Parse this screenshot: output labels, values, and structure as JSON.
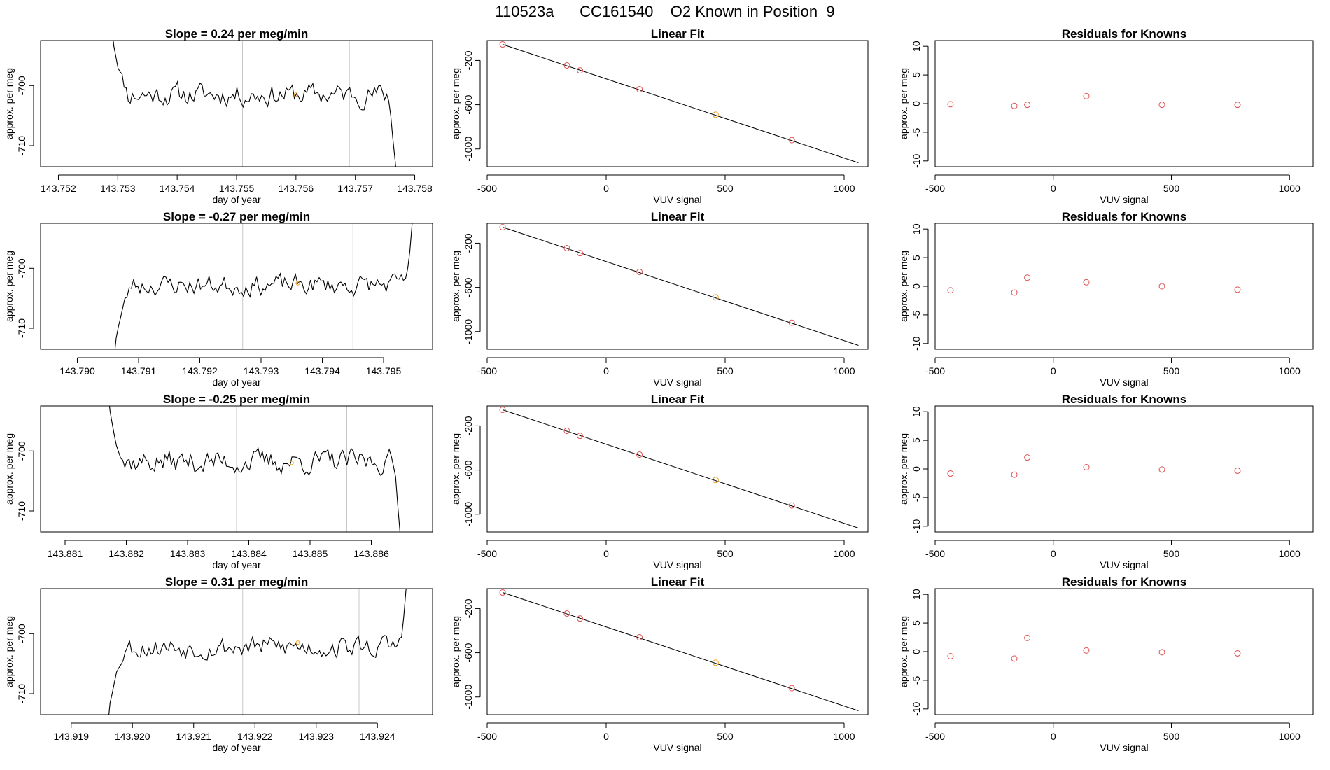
{
  "page_title": "110523a      CC161540    O2 Known in Position  9",
  "colors": {
    "line": "#000000",
    "known_point": "#e05050",
    "current_point": "#f0a020",
    "vertical_marker": "#c8c8c8",
    "frame": "#000000"
  },
  "row_count": 4,
  "chart_data": [
    {
      "type": "line",
      "row": 0,
      "col": 0,
      "title": "Slope =  0.24  per meg/min",
      "xlabel": "day of year",
      "ylabel": "approx. per meg",
      "xlim": [
        143.7517,
        143.7583
      ],
      "ylim": [
        -713.5,
        -692.5
      ],
      "xticks": [
        "143.752",
        "143.753",
        "143.754",
        "143.755",
        "143.756",
        "143.757",
        "143.758"
      ],
      "yticks": [
        -710,
        -700
      ],
      "vlines": [
        143.7551,
        143.7569
      ],
      "trace": {
        "x_start": 143.7529,
        "x_end": 143.7577,
        "n": 140,
        "level": -701.5,
        "amp": 1.4,
        "seed": 11,
        "left_edge": -690,
        "right_edge": -715
      },
      "highlight": {
        "x": 143.756,
        "y": -701.5
      }
    },
    {
      "type": "bar_fit",
      "row": 0,
      "col": 1,
      "title": "Linear Fit",
      "xlabel": "VUV signal",
      "ylabel": "approx. per meg",
      "xlim": [
        -500,
        1100
      ],
      "ylim": [
        -1160,
        -20
      ],
      "xticks": [
        -500,
        0,
        500,
        1000
      ],
      "yticks": [
        -200,
        -600,
        -1000
      ],
      "points": [
        [
          -435,
          -55
        ],
        [
          -165,
          -245
        ],
        [
          -110,
          -290
        ],
        [
          140,
          -460
        ],
        [
          460,
          -690
        ],
        [
          780,
          -920
        ]
      ],
      "current_index": 4,
      "fit_line": [
        [
          -435,
          -55
        ],
        [
          1060,
          -1125
        ]
      ]
    },
    {
      "type": "scatter",
      "row": 0,
      "col": 2,
      "title": "Residuals for Knowns",
      "xlabel": "VUV signal",
      "ylabel": "approx. per meg",
      "xlim": [
        -500,
        1100
      ],
      "ylim": [
        -11,
        11
      ],
      "xticks": [
        -500,
        0,
        500,
        1000
      ],
      "yticks": [
        10,
        5,
        0,
        -5,
        -10
      ],
      "points": [
        [
          -435,
          -0.1
        ],
        [
          -165,
          -0.4
        ],
        [
          -110,
          -0.2
        ],
        [
          140,
          1.3
        ],
        [
          460,
          -0.2
        ],
        [
          780,
          -0.2
        ]
      ]
    },
    {
      "type": "line",
      "row": 1,
      "col": 0,
      "title": "Slope =  -0.27  per meg/min",
      "xlabel": "day of year",
      "ylabel": "approx. per meg",
      "xlim": [
        143.7894,
        143.7958
      ],
      "ylim": [
        -713.5,
        -692.5
      ],
      "xticks": [
        "143.790",
        "143.791",
        "143.792",
        "143.793",
        "143.794",
        "143.795"
      ],
      "yticks": [
        -710,
        -700
      ],
      "vlines": [
        143.7927,
        143.7945
      ],
      "trace": {
        "x_start": 143.7906,
        "x_end": 143.7955,
        "n": 140,
        "level": -702.8,
        "amp": 1.3,
        "seed": 23,
        "left_edge": -715,
        "right_edge": -690
      },
      "highlight": {
        "x": 143.7936,
        "y": -702.5
      }
    },
    {
      "type": "bar_fit",
      "row": 1,
      "col": 1,
      "title": "Linear Fit",
      "xlabel": "VUV signal",
      "ylabel": "approx. per meg",
      "xlim": [
        -500,
        1100
      ],
      "ylim": [
        -1160,
        -20
      ],
      "xticks": [
        -500,
        0,
        500,
        1000
      ],
      "yticks": [
        -200,
        -600,
        -1000
      ],
      "points": [
        [
          -435,
          -55
        ],
        [
          -165,
          -245
        ],
        [
          -110,
          -290
        ],
        [
          140,
          -460
        ],
        [
          460,
          -690
        ],
        [
          780,
          -920
        ]
      ],
      "current_index": 4,
      "fit_line": [
        [
          -435,
          -55
        ],
        [
          1060,
          -1125
        ]
      ]
    },
    {
      "type": "scatter",
      "row": 1,
      "col": 2,
      "title": "Residuals for Knowns",
      "xlabel": "VUV signal",
      "ylabel": "approx. per meg",
      "xlim": [
        -500,
        1100
      ],
      "ylim": [
        -11,
        11
      ],
      "xticks": [
        -500,
        0,
        500,
        1000
      ],
      "yticks": [
        10,
        5,
        0,
        -5,
        -10
      ],
      "points": [
        [
          -435,
          -0.7
        ],
        [
          -165,
          -1.1
        ],
        [
          -110,
          1.5
        ],
        [
          140,
          0.7
        ],
        [
          460,
          0.0
        ],
        [
          780,
          -0.6
        ]
      ]
    },
    {
      "type": "line",
      "row": 2,
      "col": 0,
      "title": "Slope =  -0.25  per meg/min",
      "xlabel": "day of year",
      "ylabel": "approx. per meg",
      "xlim": [
        143.8806,
        143.887
      ],
      "ylim": [
        -713.5,
        -692.5
      ],
      "xticks": [
        "143.881",
        "143.882",
        "143.883",
        "143.884",
        "143.885",
        "143.886"
      ],
      "yticks": [
        -710,
        -700
      ],
      "vlines": [
        143.8838,
        143.8856
      ],
      "trace": {
        "x_start": 143.8817,
        "x_end": 143.8865,
        "n": 140,
        "level": -701.8,
        "amp": 1.5,
        "seed": 37,
        "left_edge": -690,
        "right_edge": -715
      },
      "highlight": {
        "x": 143.8847,
        "y": -702.0
      }
    },
    {
      "type": "bar_fit",
      "row": 2,
      "col": 1,
      "title": "Linear Fit",
      "xlabel": "VUV signal",
      "ylabel": "approx. per meg",
      "xlim": [
        -500,
        1100
      ],
      "ylim": [
        -1160,
        -20
      ],
      "xticks": [
        -500,
        0,
        500,
        1000
      ],
      "yticks": [
        -200,
        -600,
        -1000
      ],
      "points": [
        [
          -435,
          -55
        ],
        [
          -165,
          -245
        ],
        [
          -110,
          -290
        ],
        [
          140,
          -460
        ],
        [
          460,
          -690
        ],
        [
          780,
          -920
        ]
      ],
      "current_index": 4,
      "fit_line": [
        [
          -435,
          -55
        ],
        [
          1060,
          -1125
        ]
      ]
    },
    {
      "type": "scatter",
      "row": 2,
      "col": 2,
      "title": "Residuals for Knowns",
      "xlabel": "VUV signal",
      "ylabel": "approx. per meg",
      "xlim": [
        -500,
        1100
      ],
      "ylim": [
        -11,
        11
      ],
      "xticks": [
        -500,
        0,
        500,
        1000
      ],
      "yticks": [
        10,
        5,
        0,
        -5,
        -10
      ],
      "points": [
        [
          -435,
          -0.8
        ],
        [
          -165,
          -1.0
        ],
        [
          -110,
          2.0
        ],
        [
          140,
          0.3
        ],
        [
          460,
          -0.1
        ],
        [
          780,
          -0.3
        ]
      ]
    },
    {
      "type": "line",
      "row": 3,
      "col": 0,
      "title": "Slope =  0.31  per meg/min",
      "xlabel": "day of year",
      "ylabel": "approx. per meg",
      "xlim": [
        143.9185,
        143.9249
      ],
      "ylim": [
        -713.5,
        -692.5
      ],
      "xticks": [
        "143.919",
        "143.920",
        "143.921",
        "143.922",
        "143.923",
        "143.924"
      ],
      "yticks": [
        -710,
        -700
      ],
      "vlines": [
        143.9218,
        143.9237
      ],
      "trace": {
        "x_start": 143.9196,
        "x_end": 143.9245,
        "n": 140,
        "level": -702.2,
        "amp": 1.4,
        "seed": 53,
        "left_edge": -715,
        "right_edge": -690
      },
      "highlight": {
        "x": 143.9227,
        "y": -701.5
      }
    },
    {
      "type": "bar_fit",
      "row": 3,
      "col": 1,
      "title": "Linear Fit",
      "xlabel": "VUV signal",
      "ylabel": "approx. per meg",
      "xlim": [
        -500,
        1100
      ],
      "ylim": [
        -1160,
        -20
      ],
      "xticks": [
        -500,
        0,
        500,
        1000
      ],
      "yticks": [
        -200,
        -600,
        -1000
      ],
      "points": [
        [
          -435,
          -55
        ],
        [
          -165,
          -245
        ],
        [
          -110,
          -290
        ],
        [
          140,
          -460
        ],
        [
          460,
          -690
        ],
        [
          780,
          -920
        ]
      ],
      "current_index": 4,
      "fit_line": [
        [
          -435,
          -55
        ],
        [
          1060,
          -1125
        ]
      ]
    },
    {
      "type": "scatter",
      "row": 3,
      "col": 2,
      "title": "Residuals for Knowns",
      "xlabel": "VUV signal",
      "ylabel": "approx. per meg",
      "xlim": [
        -500,
        1100
      ],
      "ylim": [
        -11,
        11
      ],
      "xticks": [
        -500,
        0,
        500,
        1000
      ],
      "yticks": [
        10,
        5,
        0,
        -5,
        -10
      ],
      "points": [
        [
          -435,
          -0.8
        ],
        [
          -165,
          -1.2
        ],
        [
          -110,
          2.4
        ],
        [
          140,
          0.2
        ],
        [
          460,
          -0.1
        ],
        [
          780,
          -0.3
        ]
      ]
    }
  ]
}
